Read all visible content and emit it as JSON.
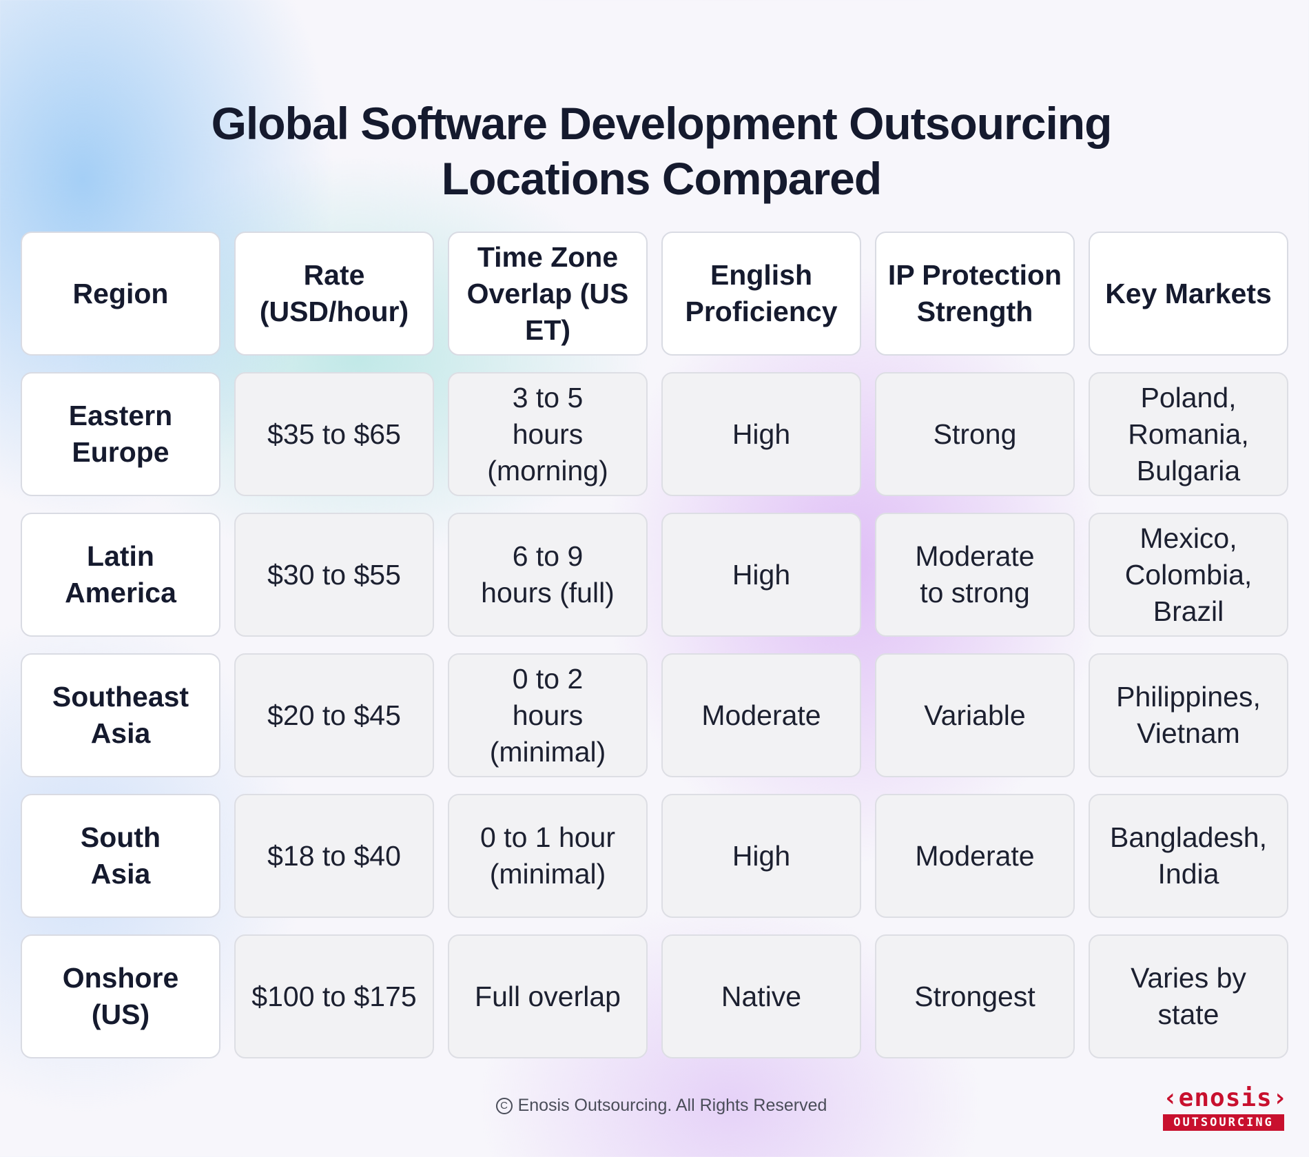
{
  "title": {
    "line1": "Global Software Development Outsourcing",
    "line2": "Locations Compared"
  },
  "table": {
    "headers": [
      "Region",
      "Rate (USD/hour)",
      "Time Zone Overlap (US ET)",
      "English Proficiency",
      "IP Protection Strength",
      "Key Markets"
    ],
    "rows": [
      {
        "region": "Eastern Europe",
        "rate": "$35 to $65",
        "time_zone": "3 to 5 hours (morning)",
        "english": "High",
        "ip": "Strong",
        "markets": "Poland, Romania, Bulgaria"
      },
      {
        "region": "Latin America",
        "rate": "$30 to $55",
        "time_zone": "6 to 9 hours (full)",
        "english": "High",
        "ip": "Moderate to strong",
        "markets": "Mexico, Colombia, Brazil"
      },
      {
        "region": "Southeast Asia",
        "rate": "$20 to $45",
        "time_zone": "0 to 2 hours (minimal)",
        "english": "Moderate",
        "ip": "Variable",
        "markets": "Philippines, Vietnam"
      },
      {
        "region": "South Asia",
        "rate": "$18 to $40",
        "time_zone": "0 to 1 hour (minimal)",
        "english": "High",
        "ip": "Moderate",
        "markets": "Bangladesh, India"
      },
      {
        "region": "Onshore (US)",
        "rate": "$100 to $175",
        "time_zone": "Full overlap",
        "english": "Native",
        "ip": "Strongest",
        "markets": "Varies by state"
      }
    ]
  },
  "footer": {
    "copyright_icon": "copyright-icon",
    "text": "Enosis Outsourcing. All Rights Reserved"
  },
  "logo": {
    "wordmark": "‹enosis›",
    "tagline": "OUTSOURCING",
    "color": "#c8102e"
  }
}
